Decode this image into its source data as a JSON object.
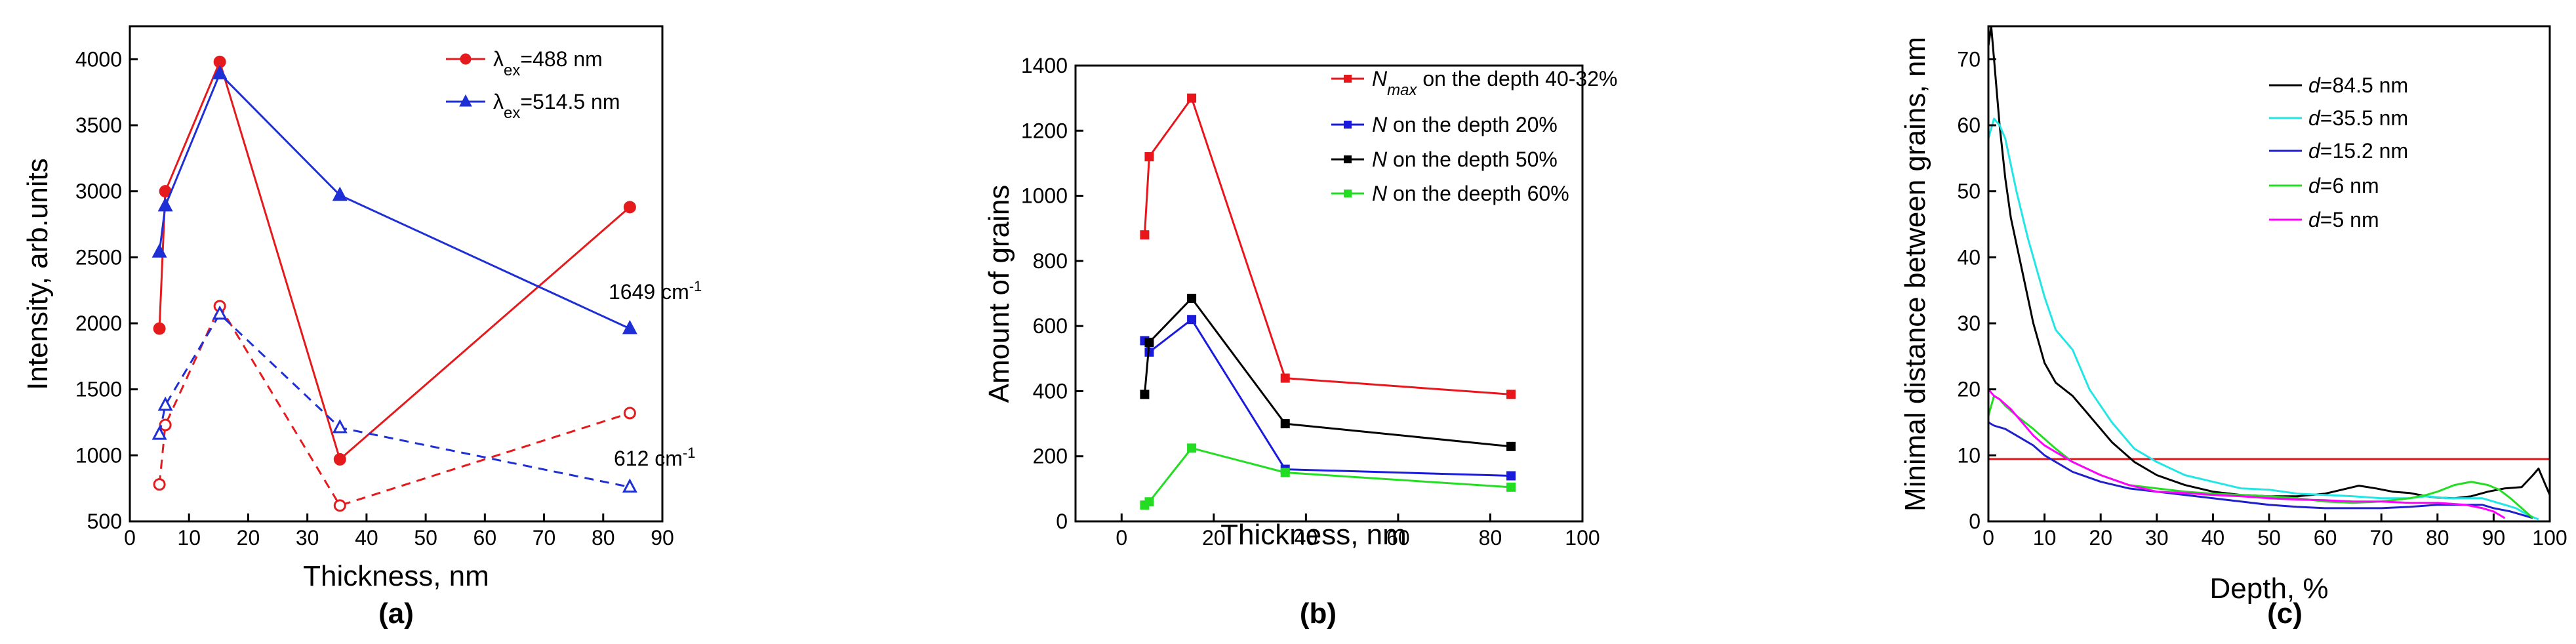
{
  "chart_data": [
    {
      "type": "line",
      "caption": "(a)",
      "xlabel": "Thickness, nm",
      "ylabel": "Intensity, arb.units",
      "xlim": [
        0,
        90
      ],
      "ylim": [
        500,
        4250
      ],
      "xticks": [
        "0",
        "10",
        "20",
        "30",
        "40",
        "50",
        "60",
        "70",
        "80",
        "90"
      ],
      "yticks": [
        "500",
        "1000",
        "1500",
        "2000",
        "2500",
        "3000",
        "3500",
        "4000"
      ],
      "legend": [
        {
          "prefix": "λ",
          "sub": "ex",
          "suffix": "=488 nm"
        },
        {
          "prefix": "λ",
          "sub": "ex",
          "suffix": "=514.5 nm"
        }
      ],
      "annotations": [
        {
          "text": "1649 cm",
          "sup": "-1"
        },
        {
          "text": "612 cm",
          "sup": "-1"
        }
      ],
      "series": [
        {
          "name": "λex=488 nm, 1649 cm-1",
          "color": "#e41a1c",
          "marker": "circle",
          "filled": true,
          "dash": false,
          "x": [
            5,
            6,
            15.2,
            35.5,
            84.5
          ],
          "y": [
            1960,
            3000,
            3980,
            970,
            2880
          ]
        },
        {
          "name": "λex=514.5 nm, 1649 cm-1",
          "color": "#1f2fd6",
          "marker": "triangle",
          "filled": true,
          "dash": false,
          "x": [
            5,
            6,
            15.2,
            35.5,
            84.5
          ],
          "y": [
            2540,
            2890,
            3890,
            2970,
            1960
          ]
        },
        {
          "name": "λex=488 nm, 612 cm-1",
          "color": "#e41a1c",
          "marker": "circle",
          "filled": false,
          "dash": true,
          "x": [
            5,
            6,
            15.2,
            35.5,
            84.5
          ],
          "y": [
            780,
            1230,
            2130,
            620,
            1320
          ]
        },
        {
          "name": "λex=514.5 nm, 612 cm-1",
          "color": "#1f2fd6",
          "marker": "triangle",
          "filled": false,
          "dash": true,
          "x": [
            5,
            6,
            15.2,
            35.5,
            84.5
          ],
          "y": [
            1160,
            1380,
            2070,
            1210,
            760
          ]
        }
      ]
    },
    {
      "type": "line",
      "caption": "(b)",
      "xlabel": "Thickness, nm",
      "ylabel": "Amount of grains",
      "xlim": [
        -10,
        100
      ],
      "ylim": [
        0,
        1400
      ],
      "xticks": [
        "0",
        "20",
        "40",
        "60",
        "80",
        "100"
      ],
      "yticks": [
        "0",
        "200",
        "400",
        "600",
        "800",
        "1000",
        "1200",
        "1400"
      ],
      "legend": [
        {
          "italic": "N",
          "sub": "max",
          "suffix": " on the depth 40-32%"
        },
        {
          "italic": "N",
          "suffix": " on the depth 20%"
        },
        {
          "italic": "N",
          "suffix": " on the depth 50%"
        },
        {
          "italic": "N",
          "suffix": " on the deepth 60%"
        }
      ],
      "series": [
        {
          "name": "Nmax on the depth 40-32%",
          "color": "#e8161b",
          "x": [
            5,
            6,
            15.2,
            35.5,
            84.5
          ],
          "y": [
            880,
            1120,
            1300,
            440,
            390
          ]
        },
        {
          "name": "N on the depth 20%",
          "color": "#1a1adc",
          "x": [
            5,
            6,
            15.2,
            35.5,
            84.5
          ],
          "y": [
            555,
            520,
            620,
            160,
            140
          ]
        },
        {
          "name": "N on the depth 50%",
          "color": "#000000",
          "x": [
            5,
            6,
            15.2,
            35.5,
            84.5
          ],
          "y": [
            390,
            550,
            685,
            300,
            230
          ]
        },
        {
          "name": "N on the deepth 60%",
          "color": "#22dd22",
          "x": [
            5,
            6,
            15.2,
            35.5,
            84.5
          ],
          "y": [
            50,
            60,
            225,
            150,
            105
          ]
        }
      ]
    },
    {
      "type": "line",
      "caption": "(c)",
      "xlabel": "Depth, %",
      "ylabel": "Minimal distance between grains, nm",
      "xlim": [
        0,
        100
      ],
      "ylim": [
        0,
        75
      ],
      "xticks": [
        "0",
        "10",
        "20",
        "30",
        "40",
        "50",
        "60",
        "70",
        "80",
        "90",
        "100"
      ],
      "yticks": [
        "0",
        "10",
        "20",
        "30",
        "40",
        "50",
        "60",
        "70"
      ],
      "threshold": {
        "y": 10,
        "color": "#e0151a"
      },
      "legend": [
        {
          "italic": "d",
          "suffix": "=84.5 nm"
        },
        {
          "italic": "d",
          "suffix": "=35.5 nm"
        },
        {
          "italic": "d",
          "suffix": "=15.2 nm"
        },
        {
          "italic": "d",
          "suffix": "=6 nm"
        },
        {
          "italic": "d",
          "suffix": "=5 nm"
        }
      ],
      "series": [
        {
          "name": "d=84.5 nm",
          "color": "#000000",
          "x": [
            0,
            0.5,
            1,
            2,
            3,
            4,
            6,
            8,
            10,
            12,
            15,
            18,
            22,
            26,
            30,
            35,
            40,
            45,
            50,
            55,
            60,
            63,
            66,
            69,
            72,
            75,
            78,
            80,
            83,
            86,
            89,
            92,
            95,
            97,
            98,
            99,
            100
          ],
          "y": [
            72,
            75,
            70,
            60,
            52,
            46,
            38,
            30,
            24,
            21,
            19,
            16,
            12,
            9,
            7,
            5.5,
            4.5,
            4,
            3.8,
            3.8,
            4.2,
            4.8,
            5.4,
            5,
            4.5,
            4.3,
            3.8,
            3.6,
            3.5,
            3.8,
            4.5,
            5,
            5.2,
            7,
            8,
            6,
            4
          ]
        },
        {
          "name": "d=35.5 nm",
          "color": "#22e5e5",
          "x": [
            0,
            1,
            2,
            3,
            5,
            7,
            10,
            12,
            15,
            18,
            22,
            26,
            30,
            35,
            40,
            45,
            50,
            55,
            60,
            65,
            70,
            75,
            78,
            82,
            85,
            88,
            90,
            92,
            94,
            96,
            98
          ],
          "y": [
            58,
            61,
            60,
            58,
            50,
            43,
            34,
            29,
            26,
            20,
            15,
            11,
            9,
            7,
            6,
            5,
            4.8,
            4.2,
            4,
            3.8,
            3.5,
            3.5,
            3.8,
            3.5,
            3.5,
            3.5,
            3,
            2.5,
            2,
            1,
            0.3
          ]
        },
        {
          "name": "d=15.2 nm",
          "color": "#1f1fcc",
          "x": [
            0,
            1,
            3,
            5,
            8,
            10,
            12,
            15,
            20,
            25,
            30,
            35,
            40,
            45,
            50,
            55,
            60,
            65,
            70,
            75,
            80,
            85,
            88,
            90,
            93,
            95,
            97
          ],
          "y": [
            15,
            14.5,
            14,
            13,
            11.5,
            10,
            9,
            7.5,
            6,
            5,
            4.5,
            4,
            3.5,
            3,
            2.5,
            2.2,
            2,
            2,
            2,
            2.2,
            2.5,
            2.5,
            2.5,
            2,
            1.5,
            1,
            0.5
          ]
        },
        {
          "name": "d=6 nm",
          "color": "#22dd22",
          "x": [
            0,
            1,
            2,
            3,
            5,
            8,
            10,
            12,
            15,
            20,
            25,
            30,
            35,
            40,
            45,
            50,
            55,
            60,
            65,
            70,
            75,
            78,
            80,
            83,
            86,
            89,
            91,
            93,
            95,
            97
          ],
          "y": [
            16,
            19,
            18.5,
            17.5,
            16,
            14,
            12.5,
            11,
            9,
            7,
            5.5,
            5,
            4.5,
            4.2,
            4,
            3.8,
            3.5,
            3,
            2.8,
            3,
            3.5,
            4,
            4.5,
            5.5,
            6,
            5.5,
            4.8,
            3.5,
            2,
            0.5
          ]
        },
        {
          "name": "d=5 nm",
          "color": "#ff00ff",
          "x": [
            0,
            1,
            2,
            4,
            6,
            8,
            10,
            12,
            15,
            20,
            25,
            30,
            35,
            40,
            45,
            50,
            55,
            60,
            65,
            70,
            75,
            80,
            85,
            88,
            90,
            92
          ],
          "y": [
            20,
            19,
            18.5,
            17,
            15,
            13,
            11.5,
            10.5,
            9,
            7,
            5.5,
            4.5,
            4.3,
            4,
            3.8,
            3.5,
            3.3,
            3.2,
            3,
            3,
            2.8,
            2.8,
            2.5,
            2,
            1.5,
            0.5
          ]
        }
      ]
    }
  ]
}
